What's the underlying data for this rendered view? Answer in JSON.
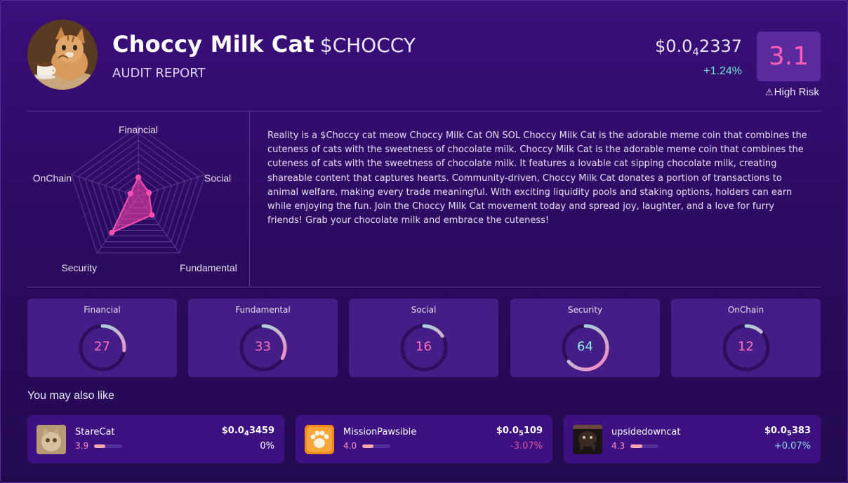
{
  "header": {
    "token_name": "Choccy Milk Cat",
    "ticker": "$CHOCCY",
    "subtitle": "AUDIT REPORT",
    "price_prefix": "$0.0",
    "price_sub": "4",
    "price_suffix": "2337",
    "change": "+1.24%",
    "score": "3.1",
    "risk_icon": "warning-icon",
    "risk_label": "High Risk"
  },
  "radar": {
    "axes": [
      "Financial",
      "Social",
      "Fundamental",
      "Security",
      "OnChain"
    ],
    "values": [
      27,
      16,
      33,
      64,
      12
    ],
    "max": 100
  },
  "description": "Reality is a $Choccy cat meow Choccy Milk Cat ON SOL Choccy Milk Cat is the adorable meme coin that combines the cuteness of cats with the sweetness of chocolate milk. Choccy Milk Cat is the adorable meme coin that combines the cuteness of cats with the sweetness of chocolate milk. It features a lovable cat sipping chocolate milk, creating shareable content that captures hearts. Community-driven, Choccy Milk Cat donates a portion of transactions to animal welfare, making every trade meaningful. With exciting liquidity pools and staking options, holders can earn while enjoying the fun. Join the Choccy Milk Cat movement today and spread joy, laughter, and a love for furry friends! Grab your chocolate milk and embrace the cuteness!",
  "metrics": [
    {
      "label": "Financial",
      "value": "27"
    },
    {
      "label": "Fundamental",
      "value": "33"
    },
    {
      "label": "Social",
      "value": "16"
    },
    {
      "label": "Security",
      "value": "64"
    },
    {
      "label": "OnChain",
      "value": "12"
    }
  ],
  "also_like": {
    "heading": "You may also like",
    "items": [
      {
        "name": "StareCat",
        "score": "3.9",
        "score_fraction": 0.39,
        "price_prefix": "$0.0",
        "price_sub": "4",
        "price_suffix": "3459",
        "change": "0%",
        "change_color": "#ffffff"
      },
      {
        "name": "MissionPawsible",
        "score": "4.0",
        "score_fraction": 0.4,
        "price_prefix": "$0.0",
        "price_sub": "5",
        "price_suffix": "109",
        "change": "-3.07%",
        "change_color": "#e0559b"
      },
      {
        "name": "upsidedowncat",
        "score": "4.3",
        "score_fraction": 0.43,
        "price_prefix": "$0.0",
        "price_sub": "5",
        "price_suffix": "383",
        "change": "+0.07%",
        "change_color": "#8fd9f0"
      }
    ]
  },
  "colors": {
    "accent_pink": "#ff5fb8",
    "accent_teal": "#6fe3d6",
    "card_bg": "#441e86"
  }
}
